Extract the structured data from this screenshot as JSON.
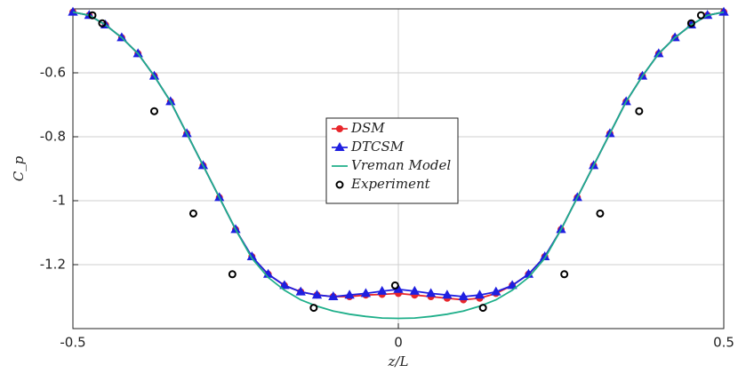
{
  "chart_data": {
    "type": "line",
    "xlabel": "z/L",
    "ylabel": "C_p",
    "xlim": [
      -0.5,
      0.5
    ],
    "xticks": [
      -0.5,
      0,
      0.5
    ],
    "ylim": [
      -1.4,
      -0.4
    ],
    "yticks": [
      -0.6,
      -0.8,
      -1,
      -1.2
    ],
    "grid": true,
    "legend": "center",
    "x": [
      -0.5,
      -0.475,
      -0.45,
      -0.425,
      -0.4,
      -0.375,
      -0.35,
      -0.325,
      -0.3,
      -0.275,
      -0.25,
      -0.225,
      -0.2,
      -0.175,
      -0.15,
      -0.125,
      -0.1,
      -0.075,
      -0.05,
      -0.025,
      0,
      0.025,
      0.05,
      0.075,
      0.1,
      0.125,
      0.15,
      0.175,
      0.2,
      0.225,
      0.25,
      0.275,
      0.3,
      0.325,
      0.35,
      0.375,
      0.4,
      0.425,
      0.45,
      0.475,
      0.5
    ],
    "series": [
      {
        "name": "DSM",
        "color": "#e8262b",
        "marker": "circle",
        "values": [
          -0.41,
          -0.42,
          -0.45,
          -0.49,
          -0.54,
          -0.61,
          -0.69,
          -0.79,
          -0.89,
          -0.99,
          -1.09,
          -1.175,
          -1.23,
          -1.265,
          -1.285,
          -1.295,
          -1.3,
          -1.3,
          -1.295,
          -1.293,
          -1.29,
          -1.295,
          -1.3,
          -1.305,
          -1.31,
          -1.305,
          -1.29,
          -1.265,
          -1.23,
          -1.175,
          -1.09,
          -0.99,
          -0.89,
          -0.79,
          -0.69,
          -0.61,
          -0.54,
          -0.49,
          -0.45,
          -0.42,
          -0.41
        ]
      },
      {
        "name": "DTCSM",
        "color": "#1f1fe0",
        "marker": "triangle",
        "values": [
          -0.41,
          -0.42,
          -0.45,
          -0.49,
          -0.54,
          -0.61,
          -0.69,
          -0.79,
          -0.89,
          -0.99,
          -1.09,
          -1.175,
          -1.23,
          -1.265,
          -1.285,
          -1.295,
          -1.3,
          -1.295,
          -1.29,
          -1.283,
          -1.277,
          -1.283,
          -1.29,
          -1.295,
          -1.3,
          -1.295,
          -1.285,
          -1.265,
          -1.23,
          -1.175,
          -1.09,
          -0.99,
          -0.89,
          -0.79,
          -0.69,
          -0.61,
          -0.54,
          -0.49,
          -0.45,
          -0.42,
          -0.41
        ]
      },
      {
        "name": "Vreman Model",
        "color": "#1faf8a",
        "marker": "none",
        "values": [
          -0.41,
          -0.42,
          -0.45,
          -0.49,
          -0.54,
          -0.61,
          -0.69,
          -0.79,
          -0.89,
          -0.99,
          -1.09,
          -1.18,
          -1.24,
          -1.28,
          -1.31,
          -1.33,
          -1.345,
          -1.355,
          -1.362,
          -1.367,
          -1.368,
          -1.367,
          -1.362,
          -1.355,
          -1.345,
          -1.33,
          -1.31,
          -1.28,
          -1.24,
          -1.18,
          -1.09,
          -0.99,
          -0.89,
          -0.79,
          -0.69,
          -0.61,
          -0.54,
          -0.49,
          -0.45,
          -0.42,
          -0.41
        ]
      },
      {
        "name": "Experiment",
        "color": "#000000",
        "marker": "open-circle",
        "line": false,
        "x": [
          -0.47,
          -0.455,
          -0.375,
          -0.315,
          -0.255,
          -0.13,
          -0.005,
          0.13,
          0.255,
          0.31,
          0.37,
          0.45,
          0.465
        ],
        "values": [
          -0.42,
          -0.445,
          -0.72,
          -1.04,
          -1.23,
          -1.335,
          -1.265,
          -1.335,
          -1.23,
          -1.04,
          -0.72,
          -0.445,
          -0.42
        ]
      }
    ]
  }
}
